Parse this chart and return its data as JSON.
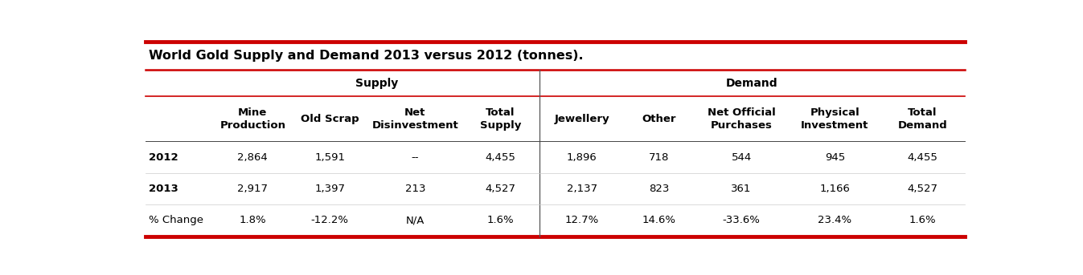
{
  "title": "World Gold Supply and Demand 2013 versus 2012 (tonnes).",
  "supply_header": "Supply",
  "demand_header": "Demand",
  "col_headers": [
    "Mine\nProduction",
    "Old Scrap",
    "Net\nDisinvestment",
    "Total\nSupply",
    "Jewellery",
    "Other",
    "Net Official\nPurchases",
    "Physical\nInvestment",
    "Total\nDemand"
  ],
  "row_labels": [
    "2012",
    "2013",
    "% Change"
  ],
  "rows": [
    [
      "2,864",
      "1,591",
      "--",
      "4,455",
      "1,896",
      "718",
      "544",
      "945",
      "4,455"
    ],
    [
      "2,917",
      "1,397",
      "213",
      "4,527",
      "2,137",
      "823",
      "361",
      "1,166",
      "4,527"
    ],
    [
      "1.8%",
      "-12.2%",
      "N/A",
      "1.6%",
      "12.7%",
      "14.6%",
      "-33.6%",
      "23.4%",
      "1.6%"
    ]
  ],
  "red_color": "#cc0000",
  "bg_color": "#ffffff",
  "title_fontsize": 11.5,
  "header_fontsize": 9.5,
  "cell_fontsize": 9.5
}
